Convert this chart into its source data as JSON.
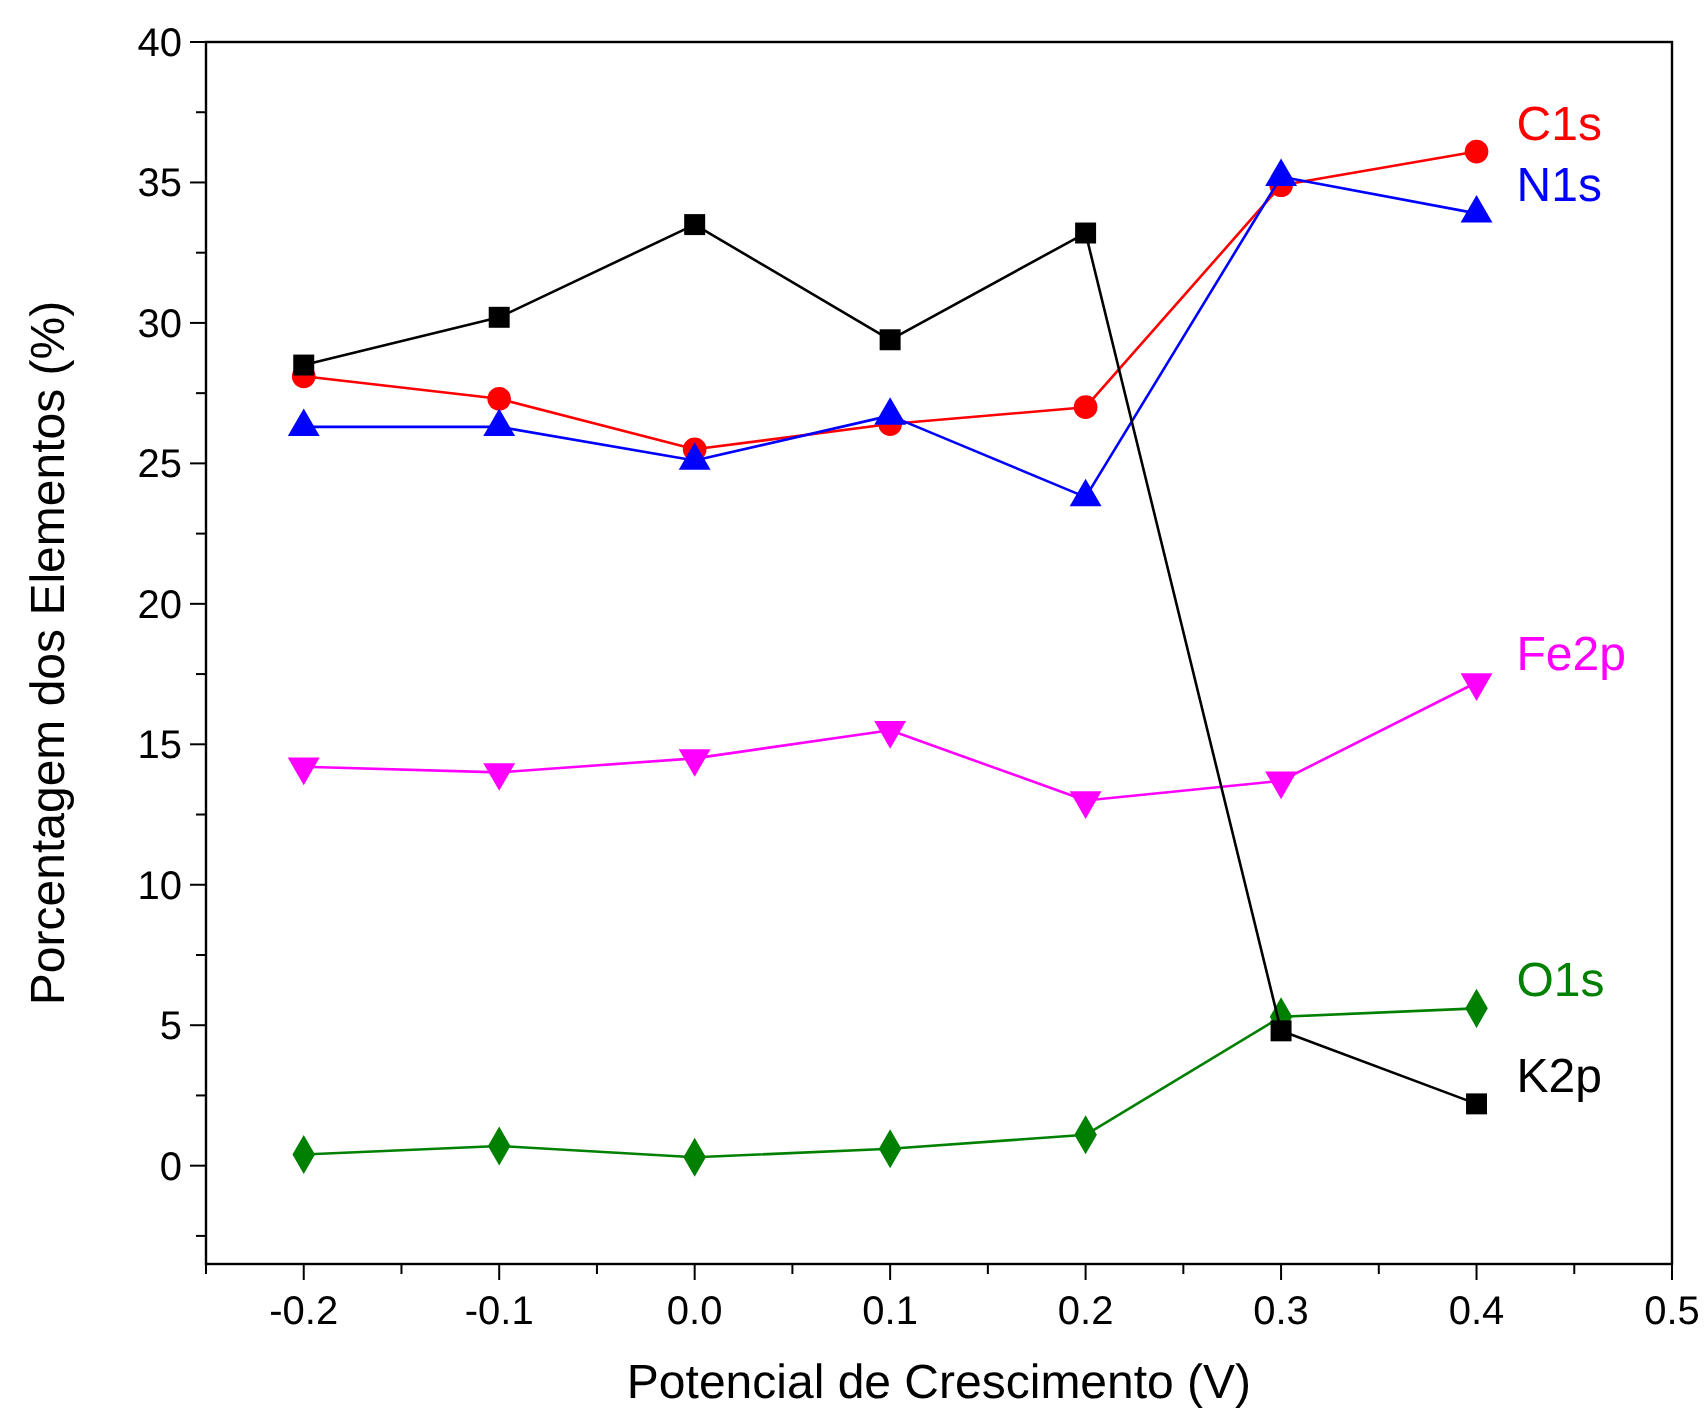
{
  "chart_data": {
    "type": "line",
    "xlabel": "Potencial de Crescimento (V)",
    "ylabel": "Porcentagem dos Elementos (%)",
    "x": [
      -0.2,
      -0.1,
      0.0,
      0.1,
      0.2,
      0.3,
      0.4
    ],
    "series": [
      {
        "name": "C1s",
        "color": "#ff0000",
        "marker": "circle",
        "values": [
          28.1,
          27.3,
          25.5,
          26.4,
          27.0,
          34.9,
          36.1
        ]
      },
      {
        "name": "N1s",
        "color": "#0000ff",
        "marker": "triangle",
        "values": [
          26.3,
          26.3,
          25.1,
          26.7,
          23.8,
          35.2,
          33.9
        ]
      },
      {
        "name": "Fe2p",
        "color": "#ff00ff",
        "marker": "triangle-down",
        "values": [
          14.2,
          14.0,
          14.5,
          15.5,
          13.0,
          13.7,
          17.2
        ]
      },
      {
        "name": "O1s",
        "color": "#008000",
        "marker": "diamond",
        "values": [
          0.4,
          0.7,
          0.3,
          0.6,
          1.1,
          5.3,
          5.6
        ]
      },
      {
        "name": "K2p",
        "color": "#000000",
        "marker": "square",
        "values": [
          28.5,
          30.2,
          33.5,
          29.4,
          33.2,
          4.8,
          2.2
        ]
      }
    ],
    "xlim": [
      -0.25,
      0.5
    ],
    "xticks": [
      {
        "value": -0.25,
        "label": null
      },
      -0.2,
      {
        "value": -0.15,
        "label": null
      },
      -0.1,
      {
        "value": -0.05,
        "label": null
      },
      {
        "value": 0,
        "label": "0.0"
      },
      {
        "value": 0.05,
        "label": null
      },
      0.1,
      {
        "value": 0.15,
        "label": null
      },
      0.2,
      {
        "value": 0.25,
        "label": null
      },
      0.3,
      {
        "value": 0.35,
        "label": null
      },
      0.4,
      {
        "value": 0.45,
        "label": null
      },
      0.5
    ],
    "ylim": [
      -3.5,
      40
    ],
    "yticks": [
      {
        "value": -2.5,
        "label": null
      },
      0,
      {
        "value": 2.5,
        "label": null
      },
      5,
      {
        "value": 7.5,
        "label": null
      },
      10,
      {
        "value": 12.5,
        "label": null
      },
      15,
      {
        "value": 17.5,
        "label": null
      },
      20,
      {
        "value": 22.5,
        "label": null
      },
      25,
      {
        "value": 27.5,
        "label": null
      },
      30,
      {
        "value": 32.5,
        "label": null
      },
      35,
      {
        "value": 37.5,
        "label": null
      },
      40
    ],
    "grid": false,
    "legend": "right"
  }
}
